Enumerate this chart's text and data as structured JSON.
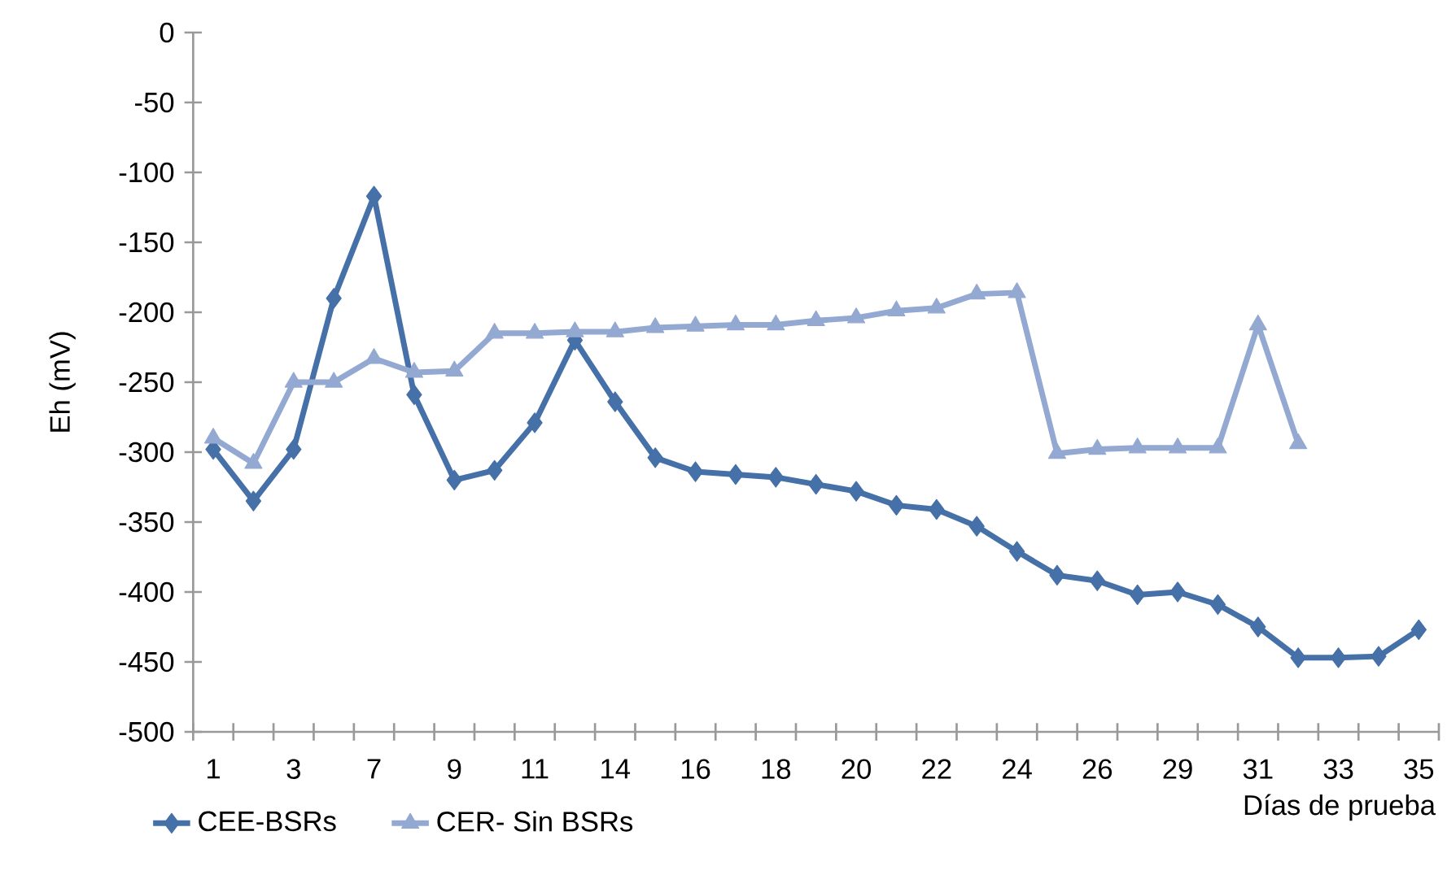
{
  "chart_data": {
    "type": "line",
    "xlabel": "Días de prueba",
    "ylabel": "Eh (mV)",
    "categories": [
      "1",
      null,
      "3",
      null,
      "7",
      null,
      "9",
      null,
      "11",
      null,
      "14",
      null,
      "16",
      null,
      "18",
      null,
      "20",
      null,
      "22",
      null,
      "24",
      null,
      "26",
      null,
      "29",
      null,
      "31",
      null,
      "33",
      null,
      "35"
    ],
    "series": [
      {
        "name": "CEE-BSRs",
        "color": "#4570a8",
        "marker": "diamond",
        "values": [
          -298,
          -335,
          -298,
          -190,
          -117,
          -259,
          -320,
          -313,
          -279,
          -220,
          -264,
          -304,
          -314,
          -316,
          -318,
          -323,
          -328,
          -338,
          -341,
          -353,
          -371,
          -388,
          -392,
          -402,
          -400,
          -409,
          -425,
          -447,
          -447,
          -446,
          -427
        ]
      },
      {
        "name": "CER- Sin BSRs",
        "color": "#93a9d1",
        "marker": "triangle",
        "values": [
          -290,
          -308,
          -250,
          -250,
          -233,
          -243,
          -242,
          -215,
          -215,
          -214,
          -214,
          -211,
          -210,
          -209,
          -209,
          -206,
          -204,
          -199,
          -197,
          -187,
          -186,
          -301,
          -298,
          -297,
          -297,
          -297,
          -209,
          -294,
          null,
          null,
          null
        ]
      }
    ],
    "ylim": [
      -500,
      0
    ],
    "yticks": [
      -500,
      -450,
      -400,
      -350,
      -300,
      -250,
      -200,
      -150,
      -100,
      -50,
      0
    ],
    "grid": false,
    "legend": "bottom left",
    "line_style": "solid"
  }
}
